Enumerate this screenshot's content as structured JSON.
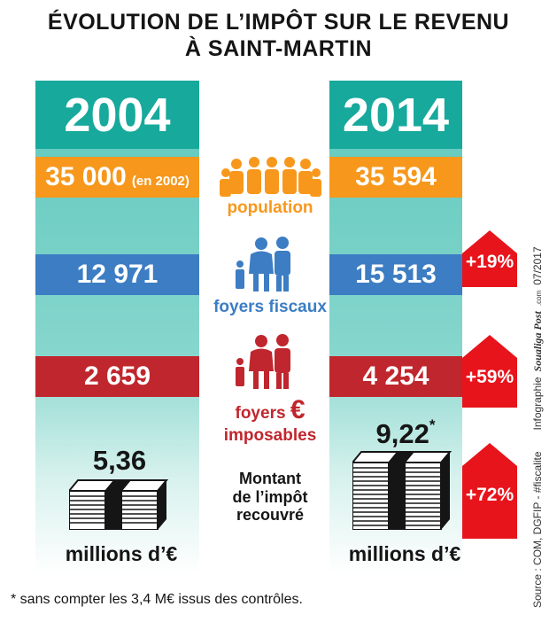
{
  "title": {
    "line1": "ÉVOLUTION DE L’IMPÔT SUR LE REVENU",
    "line2": "À SAINT-MARTIN"
  },
  "left": {
    "year": "2004",
    "population": "35 000",
    "population_note": "(en 2002)",
    "foyers_fiscaux": "12 971",
    "foyers_imposables": "2 659",
    "montant": "5,36",
    "unit": "millions d’€"
  },
  "right": {
    "year": "2014",
    "population": "35 594",
    "foyers_fiscaux": "15 513",
    "foyers_imposables": "4 254",
    "montant": "9,22",
    "montant_mark": "*",
    "unit": "millions d’€"
  },
  "labels": {
    "population": "population",
    "foyers_fiscaux": "foyers fiscaux",
    "foyers_imposables_1": "foyers",
    "euro_symbol": "€",
    "foyers_imposables_2": "imposables",
    "montant_1": "Montant",
    "montant_2": "de l’impôt",
    "montant_3": "recouvré"
  },
  "badges": {
    "foyers_fiscaux": "+19%",
    "foyers_imposables": "+59%",
    "montant": "+72%"
  },
  "footnote": "* sans compter les 3,4 M€ issus des contrôles.",
  "credits": {
    "source": "Source : COM, DGFIP - #fiscalite",
    "infographie": "Infographie",
    "brand": "Soualiga Post",
    "brand_suffix": ".com",
    "date": "07/2017"
  },
  "colors": {
    "teal": "#17a99c",
    "orange": "#f7981d",
    "blue": "#3c7dc3",
    "red": "#c0262d",
    "badge_red": "#e8141c"
  }
}
